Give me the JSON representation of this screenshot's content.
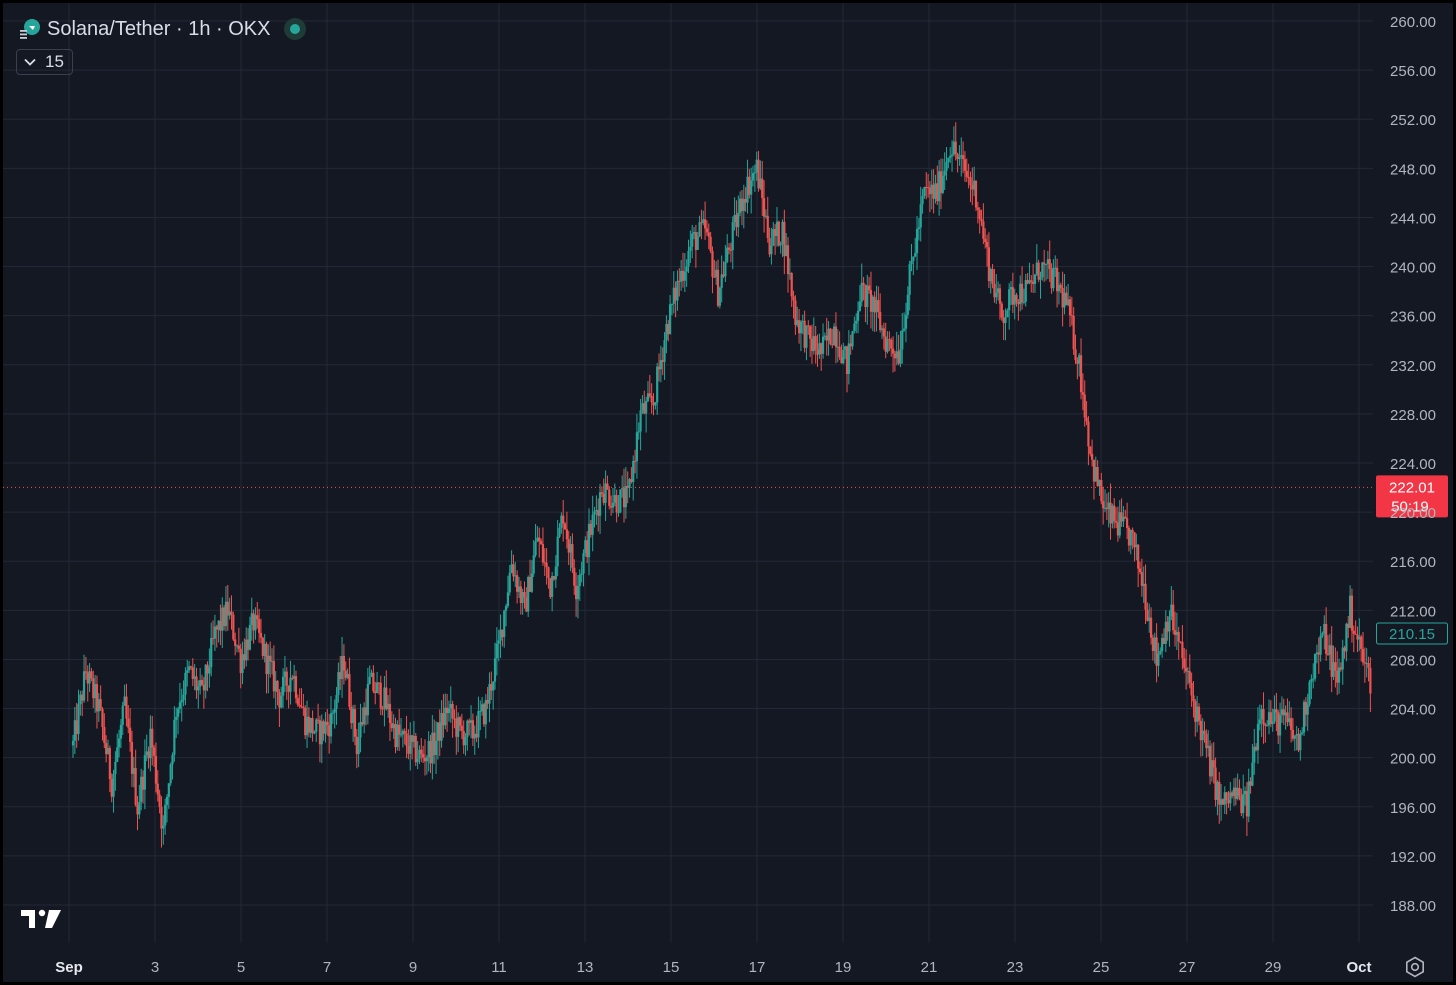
{
  "header": {
    "title": "Solana/Tether · 1h · OKX",
    "indicator_count": "15"
  },
  "colors": {
    "background": "#141823",
    "grid": "#232836",
    "up": "#26a69a",
    "down": "#ef5350",
    "text": "#d9dde8",
    "axis_text": "#b2b5be"
  },
  "icons": {
    "logo": "symbol-logo-icon",
    "status": "market-open-dot-icon",
    "chevron": "chevron-down-icon",
    "tradingview": "tradingview-logo-icon",
    "settings": "settings-gear-icon"
  },
  "chart_data": {
    "type": "candlestick",
    "title": "Solana/Tether · 1h · OKX",
    "interval": "1h",
    "y_axis": {
      "min": 184,
      "max": 261,
      "ticks": [
        "260.00",
        "256.00",
        "252.00",
        "248.00",
        "244.00",
        "240.00",
        "236.00",
        "232.00",
        "228.00",
        "224.00",
        "220.00",
        "216.00",
        "212.00",
        "208.00",
        "204.00",
        "200.00",
        "196.00",
        "192.00",
        "188.00"
      ]
    },
    "x_axis": {
      "ticks": [
        {
          "label": "Sep",
          "bold": true
        },
        {
          "label": "3",
          "bold": false
        },
        {
          "label": "5",
          "bold": false
        },
        {
          "label": "7",
          "bold": false
        },
        {
          "label": "9",
          "bold": false
        },
        {
          "label": "11",
          "bold": false
        },
        {
          "label": "13",
          "bold": false
        },
        {
          "label": "15",
          "bold": false
        },
        {
          "label": "17",
          "bold": false
        },
        {
          "label": "19",
          "bold": false
        },
        {
          "label": "21",
          "bold": false
        },
        {
          "label": "23",
          "bold": false
        },
        {
          "label": "25",
          "bold": false
        },
        {
          "label": "27",
          "bold": false
        },
        {
          "label": "29",
          "bold": false
        },
        {
          "label": "Oct",
          "bold": true
        }
      ]
    },
    "grid": true,
    "price_line": {
      "value": 222.01,
      "label": "222.01",
      "countdown": "50:19"
    },
    "last_price_tag": {
      "value": 210.15,
      "label": "210.15"
    },
    "path_points": [
      [
        0,
        201
      ],
      [
        1,
        207
      ],
      [
        2,
        204
      ],
      [
        3,
        198
      ],
      [
        4,
        204
      ],
      [
        5,
        196
      ],
      [
        6,
        202
      ],
      [
        7,
        194
      ],
      [
        8,
        204
      ],
      [
        9,
        207
      ],
      [
        10,
        205
      ],
      [
        11,
        210
      ],
      [
        12,
        212
      ],
      [
        13,
        208
      ],
      [
        14,
        211
      ],
      [
        15,
        208
      ],
      [
        16,
        205
      ],
      [
        17,
        207
      ],
      [
        18,
        203
      ],
      [
        19,
        202
      ],
      [
        20,
        203
      ],
      [
        21,
        208
      ],
      [
        22,
        201
      ],
      [
        23,
        206
      ],
      [
        24,
        205
      ],
      [
        25,
        202
      ],
      [
        26,
        201
      ],
      [
        27,
        200
      ],
      [
        28,
        201
      ],
      [
        29,
        204
      ],
      [
        30,
        202
      ],
      [
        31,
        202
      ],
      [
        32,
        204
      ],
      [
        33,
        209
      ],
      [
        34,
        216
      ],
      [
        35,
        212
      ],
      [
        36,
        218
      ],
      [
        37,
        214
      ],
      [
        38,
        220
      ],
      [
        39,
        214
      ],
      [
        40,
        218
      ],
      [
        41,
        222
      ],
      [
        42,
        221
      ],
      [
        43,
        221
      ],
      [
        44,
        228
      ],
      [
        45,
        229
      ],
      [
        46,
        235
      ],
      [
        47,
        239
      ],
      [
        48,
        242
      ],
      [
        49,
        243
      ],
      [
        50,
        238
      ],
      [
        51,
        242
      ],
      [
        52,
        246
      ],
      [
        53,
        248
      ],
      [
        54,
        242
      ],
      [
        55,
        243
      ],
      [
        56,
        236
      ],
      [
        57,
        234
      ],
      [
        58,
        233
      ],
      [
        59,
        235
      ],
      [
        60,
        232
      ],
      [
        61,
        238
      ],
      [
        62,
        237
      ],
      [
        63,
        234
      ],
      [
        64,
        233
      ],
      [
        65,
        240
      ],
      [
        66,
        246
      ],
      [
        67,
        246
      ],
      [
        68,
        250
      ],
      [
        69,
        248
      ],
      [
        70,
        246
      ],
      [
        71,
        240
      ],
      [
        72,
        236
      ],
      [
        73,
        238
      ],
      [
        74,
        238
      ],
      [
        75,
        240
      ],
      [
        76,
        239
      ],
      [
        77,
        237
      ],
      [
        78,
        232
      ],
      [
        79,
        224
      ],
      [
        80,
        220
      ],
      [
        81,
        219
      ],
      [
        82,
        218
      ],
      [
        83,
        214
      ],
      [
        84,
        208
      ],
      [
        85,
        212
      ],
      [
        86,
        208
      ],
      [
        87,
        204
      ],
      [
        88,
        200
      ],
      [
        89,
        196
      ],
      [
        90,
        197
      ],
      [
        91,
        196
      ],
      [
        92,
        204
      ],
      [
        93,
        203
      ],
      [
        94,
        203
      ],
      [
        95,
        201
      ],
      [
        96,
        207
      ],
      [
        97,
        210
      ],
      [
        98,
        206
      ],
      [
        99,
        212
      ],
      [
        100,
        208
      ],
      [
        101,
        205
      ],
      [
        102,
        209
      ],
      [
        103,
        208
      ],
      [
        104,
        210
      ]
    ]
  }
}
